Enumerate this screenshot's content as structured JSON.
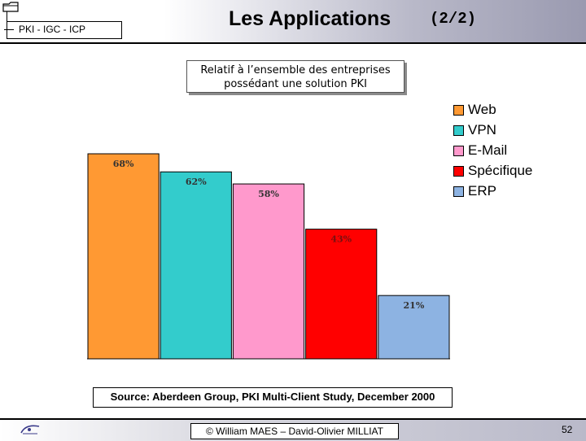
{
  "header": {
    "title": "Les Applications",
    "title_suffix": "(2/2)",
    "section_label": "PKI - IGC - ICP"
  },
  "subtitle": {
    "line1": "Relatif à l’ensemble des entreprises",
    "line2": "possédant une solution PKI"
  },
  "source": "Source: Aberdeen Group, PKI Multi-Client Study, December 2000",
  "footer": {
    "credit": "© William MAES – David-Olivier MILLIAT",
    "page_number": "52"
  },
  "chart_data": {
    "type": "bar",
    "categories": [
      "Web",
      "VPN",
      "E-Mail",
      "Spécifique",
      "ERP"
    ],
    "values": [
      68,
      62,
      58,
      43,
      21
    ],
    "data_labels": [
      "68%",
      "62%",
      "58%",
      "43%",
      "21%"
    ],
    "colors": [
      "#ff9933",
      "#33cccc",
      "#ff99cc",
      "#ff0000",
      "#8db3e2"
    ],
    "legend": [
      "Web",
      "VPN",
      "E-Mail",
      "Spécifique",
      "ERP"
    ],
    "legend_position": "top-right",
    "ylim": [
      0,
      85
    ],
    "grid": false
  }
}
